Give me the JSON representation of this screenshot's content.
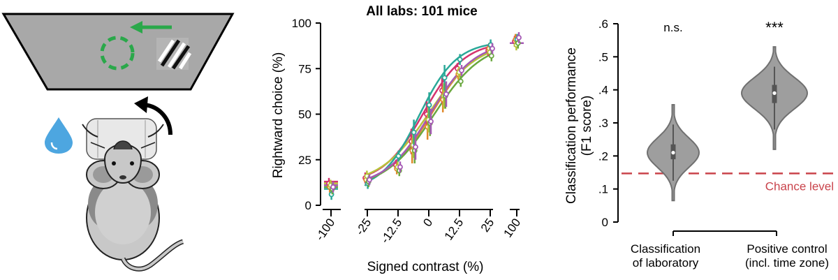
{
  "colors": {
    "screen": "#a8a8a8",
    "stimulus_target": "#2aa84a",
    "water": "#4da6e0",
    "chance_line": "#c9434b",
    "violin_fill": "#9e9e9e",
    "violin_stroke": "#707070",
    "mouse_body": "#c8c8c8",
    "mouse_dark": "#8a8a8a",
    "lab_colors": [
      "#d4336e",
      "#e0892b",
      "#b7c23a",
      "#2aa898",
      "#6aa83f",
      "#a55ab5",
      "#e05a8a",
      "#c9a227"
    ]
  },
  "illustration": {
    "icons": [
      "screen-icon",
      "gabor-stimulus-icon",
      "target-circle-icon",
      "left-arrow-icon",
      "water-drop-icon",
      "wheel-turn-arrow-icon",
      "mouse-icon"
    ]
  },
  "chart_data": [
    {
      "type": "line",
      "title": "All labs: 101 mice",
      "xlabel": "Signed contrast (%)",
      "ylabel": "Rightward choice (%)",
      "x_tick_labels": [
        "-100",
        "-25",
        "-12.5",
        "0",
        "12.5",
        "25",
        "100"
      ],
      "y_ticks": [
        0,
        25,
        50,
        75,
        100
      ],
      "ylim": [
        0,
        100
      ],
      "x": [
        -100,
        -25,
        -12.5,
        -6.25,
        0,
        6.25,
        12.5,
        25,
        100
      ],
      "series": [
        {
          "values": [
            12,
            15,
            22,
            35,
            50,
            63,
            75,
            85,
            90
          ],
          "fit_center": -2,
          "fit_slope": 0.12
        },
        {
          "values": [
            10,
            14,
            20,
            30,
            43,
            58,
            72,
            86,
            91
          ],
          "fit_center": 1,
          "fit_slope": 0.11
        },
        {
          "values": [
            11,
            16,
            21,
            33,
            47,
            60,
            73,
            84,
            88
          ],
          "fit_center": 0,
          "fit_slope": 0.1
        },
        {
          "values": [
            6,
            12,
            27,
            40,
            55,
            70,
            80,
            88,
            91
          ],
          "fit_center": -4,
          "fit_slope": 0.13
        },
        {
          "values": [
            9,
            13,
            19,
            30,
            45,
            60,
            68,
            82,
            89
          ],
          "fit_center": 2,
          "fit_slope": 0.1
        },
        {
          "values": [
            10,
            14,
            21,
            32,
            46,
            61,
            74,
            86,
            92
          ],
          "fit_center": 0.5,
          "fit_slope": 0.11
        }
      ]
    },
    {
      "type": "violin",
      "ylabel": "Classification performance\n(F1 score)",
      "ylabel_lines": [
        "Classification performance",
        "(F1 score)"
      ],
      "y_ticks": [
        0,
        0.1,
        0.2,
        0.3,
        0.4,
        0.5,
        0.6
      ],
      "y_tick_labels": [
        "0",
        ".1",
        ".2",
        ".3",
        ".4",
        ".5",
        ".6"
      ],
      "ylim": [
        0,
        0.6
      ],
      "categories": [
        {
          "label_lines": [
            "Classification",
            "of laboratory"
          ],
          "median": 0.21,
          "q1": 0.19,
          "q3": 0.235,
          "min": 0.065,
          "max": 0.355,
          "significance": "n.s."
        },
        {
          "label_lines": [
            "Positive control",
            "(incl. time zone)"
          ],
          "median": 0.39,
          "q1": 0.36,
          "q3": 0.415,
          "min": 0.22,
          "max": 0.53,
          "significance": "***"
        }
      ],
      "chance_level": 0.147,
      "chance_label": "Chance level"
    }
  ]
}
